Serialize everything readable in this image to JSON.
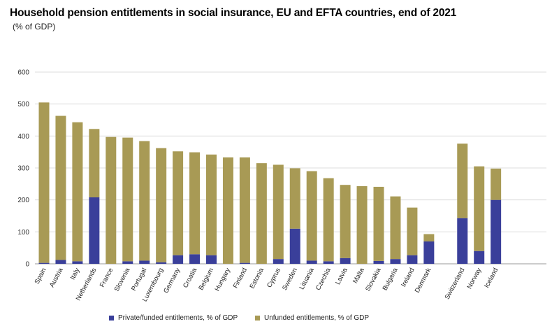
{
  "header": {
    "title": "Household pension entitlements in social insurance, EU and EFTA countries, end of 2021",
    "subtitle": "(% of GDP)"
  },
  "colors": {
    "private": "#3a3f9a",
    "unfunded": "#a89a55",
    "grid": "#dcdcdc"
  },
  "legend": [
    {
      "label": "Private/funded entitlements, % of GDP",
      "color": "#3a3f9a"
    },
    {
      "label": "Unfunded entitlements, % of GDP",
      "color": "#a89a55"
    }
  ],
  "chart_data": {
    "type": "bar",
    "stacked": true,
    "title": "Household pension entitlements in social insurance, EU and EFTA countries, end of 2021",
    "subtitle": "(% of GDP)",
    "ylim": [
      0,
      600
    ],
    "yticks": [
      0,
      100,
      200,
      300,
      400,
      500,
      600
    ],
    "grid": true,
    "legend_position": "bottom",
    "categories": [
      "Spain",
      "Austria",
      "Italy",
      "Netherlands",
      "France",
      "Slovenia",
      "Portugal",
      "Luxembourg",
      "Germany",
      "Croatia",
      "Belgium",
      "Hungary",
      "Finland",
      "Estonia",
      "Cyprus",
      "Sweden",
      "Lituania",
      "Czechia",
      "Latvia",
      "Malta",
      "Slovakia",
      "Bulgaria",
      "Ireland",
      "Denmark",
      "",
      "Switzerland",
      "Norway",
      "Iceland"
    ],
    "series": [
      {
        "name": "Private/funded entitlements, % of GDP",
        "values": [
          3,
          12,
          8,
          208,
          0,
          8,
          10,
          5,
          27,
          30,
          27,
          0,
          3,
          0,
          15,
          110,
          10,
          8,
          18,
          0,
          9,
          15,
          27,
          70,
          null,
          143,
          40,
          200
        ]
      },
      {
        "name": "Unfunded entitlements, % of GDP",
        "values": [
          502,
          451,
          435,
          214,
          397,
          387,
          374,
          357,
          325,
          319,
          315,
          333,
          330,
          315,
          295,
          189,
          280,
          260,
          229,
          243,
          232,
          196,
          149,
          23,
          null,
          233,
          265,
          98
        ]
      }
    ]
  }
}
